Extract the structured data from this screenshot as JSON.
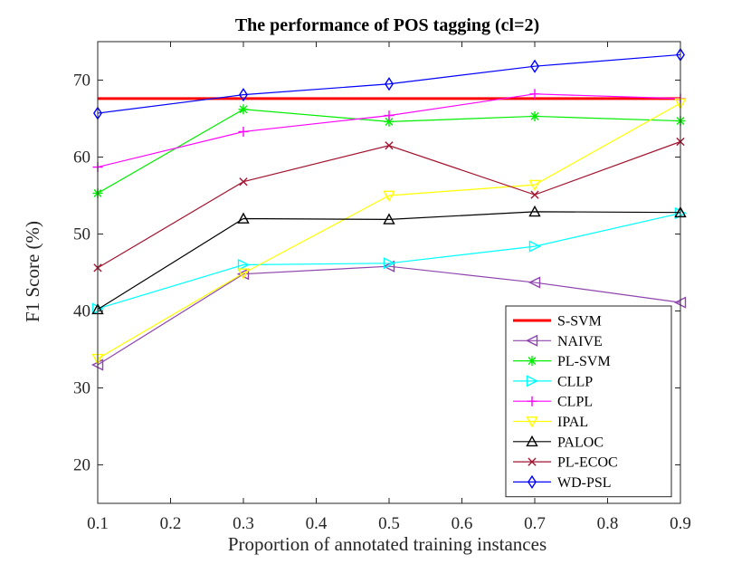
{
  "chart_data": {
    "type": "line",
    "title": "The performance of POS tagging (cl=2)",
    "xlabel": "Proportion of annotated training instances",
    "ylabel": "F1 Score (%)",
    "xlim": [
      0.1,
      0.9
    ],
    "ylim": [
      15,
      75
    ],
    "xticks": [
      0.1,
      0.2,
      0.3,
      0.4,
      0.5,
      0.6,
      0.7,
      0.8,
      0.9
    ],
    "xtick_labels": [
      "0.1",
      "0.2",
      "0.3",
      "0.4",
      "0.5",
      "0.6",
      "0.7",
      "0.8",
      "0.9"
    ],
    "yticks": [
      20,
      30,
      40,
      50,
      60,
      70
    ],
    "ytick_labels": [
      "20",
      "30",
      "40",
      "50",
      "60",
      "70"
    ],
    "grid": false,
    "legend_position": "bottom-right",
    "x": [
      0.1,
      0.3,
      0.5,
      0.7,
      0.9
    ],
    "series": [
      {
        "name": "S-SVM",
        "color": "#ff0000",
        "marker": "none",
        "values": [
          67.6,
          67.6,
          67.6,
          67.6,
          67.6
        ]
      },
      {
        "name": "NAIVE",
        "color": "#8e44ad",
        "marker": "triangle-left",
        "values": [
          33.0,
          44.8,
          45.8,
          43.7,
          41.1
        ]
      },
      {
        "name": "PL-SVM",
        "color": "#00ee00",
        "marker": "asterisk",
        "values": [
          55.3,
          66.2,
          64.6,
          65.3,
          64.7
        ]
      },
      {
        "name": "CLLP",
        "color": "#00ffff",
        "marker": "triangle-right",
        "values": [
          40.3,
          46.0,
          46.2,
          48.4,
          52.7
        ]
      },
      {
        "name": "CLPL",
        "color": "#ff00ff",
        "marker": "plus",
        "values": [
          58.7,
          63.3,
          65.4,
          68.2,
          67.6
        ]
      },
      {
        "name": "IPAL",
        "color": "#ffff00",
        "marker": "triangle-down",
        "values": [
          33.8,
          44.9,
          55.0,
          56.4,
          67.0
        ]
      },
      {
        "name": "PALOC",
        "color": "#000000",
        "marker": "triangle-up",
        "values": [
          40.2,
          52.0,
          51.9,
          52.9,
          52.8
        ]
      },
      {
        "name": "PL-ECOC",
        "color": "#a2142f",
        "marker": "x",
        "values": [
          45.6,
          56.8,
          61.5,
          55.1,
          62.0
        ]
      },
      {
        "name": "WD-PSL",
        "color": "#0000ff",
        "marker": "diamond",
        "values": [
          65.7,
          68.1,
          69.5,
          71.8,
          73.3
        ]
      }
    ]
  }
}
